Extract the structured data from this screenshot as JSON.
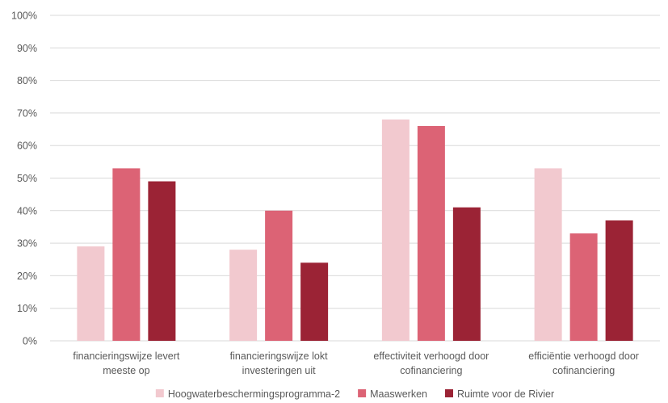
{
  "chart_data": {
    "type": "bar",
    "categories": [
      [
        "financieringswijze levert",
        "meeste op"
      ],
      [
        "financieringswijze lokt",
        "investeringen uit"
      ],
      [
        "effectiviteit verhoogd door",
        "cofinanciering"
      ],
      [
        "efficiëntie verhoogd door",
        "cofinanciering"
      ]
    ],
    "series": [
      {
        "name": "Hoogwaterbeschermingsprogramma-2",
        "color": "#f2c9cf",
        "values": [
          29,
          28,
          68,
          53
        ]
      },
      {
        "name": "Maaswerken",
        "color": "#dc6375",
        "values": [
          53,
          40,
          66,
          33
        ]
      },
      {
        "name": "Ruimte voor de Rivier",
        "color": "#9b2335",
        "values": [
          49,
          24,
          41,
          37
        ]
      }
    ],
    "ylim": [
      0,
      100
    ],
    "yticks": [
      "0%",
      "10%",
      "20%",
      "30%",
      "40%",
      "50%",
      "60%",
      "70%",
      "80%",
      "90%",
      "100%"
    ],
    "grid": true,
    "legend": "bottom",
    "colors": {
      "grid": "#d9d9d9",
      "text": "#595959"
    }
  }
}
